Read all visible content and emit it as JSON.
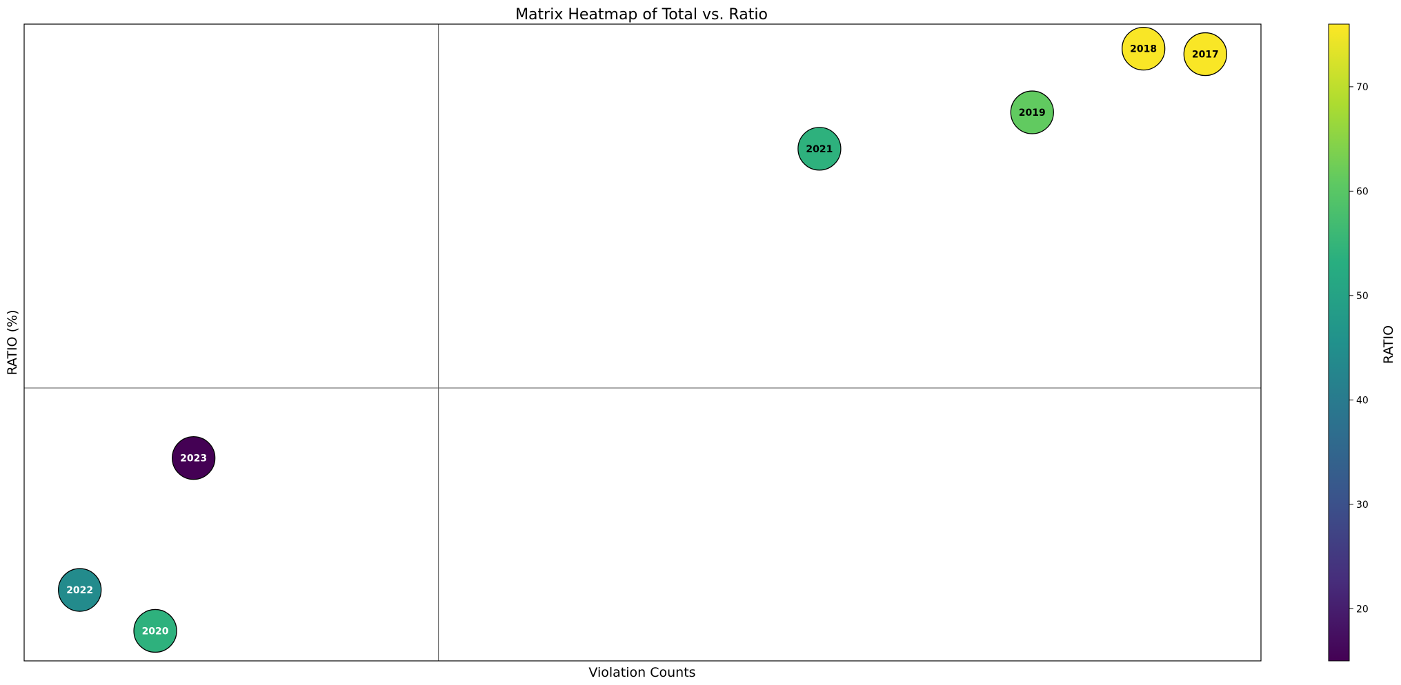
{
  "chart_data": {
    "type": "scatter",
    "title": "Matrix Heatmap of Total vs. Ratio",
    "xlabel": "Violation Counts",
    "ylabel": "RATIO (%)",
    "xlim": [
      0,
      1000
    ],
    "ylim": [
      10,
      80
    ],
    "x_ticks_shown": false,
    "y_ticks_shown": false,
    "quadrant_lines": {
      "x": 335,
      "y": 40
    },
    "points": [
      {
        "label": "2017",
        "x": 955,
        "y": 76.7,
        "ratio": 75.6
      },
      {
        "label": "2018",
        "x": 905,
        "y": 77.3,
        "ratio": 75.6
      },
      {
        "label": "2019",
        "x": 815,
        "y": 70.3,
        "ratio": 61.0
      },
      {
        "label": "2021",
        "x": 643,
        "y": 66.3,
        "ratio": 54.0
      },
      {
        "label": "2023",
        "x": 137,
        "y": 32.3,
        "ratio": 15.0
      },
      {
        "label": "2022",
        "x": 45,
        "y": 17.8,
        "ratio": 44.0
      },
      {
        "label": "2020",
        "x": 106,
        "y": 13.3,
        "ratio": 54.0
      }
    ],
    "colorbar": {
      "label": "RATIO",
      "colormap": "viridis",
      "range": [
        15,
        76
      ],
      "ticks": [
        20,
        30,
        40,
        50,
        60,
        70
      ]
    },
    "grid": false,
    "legend": "none"
  }
}
